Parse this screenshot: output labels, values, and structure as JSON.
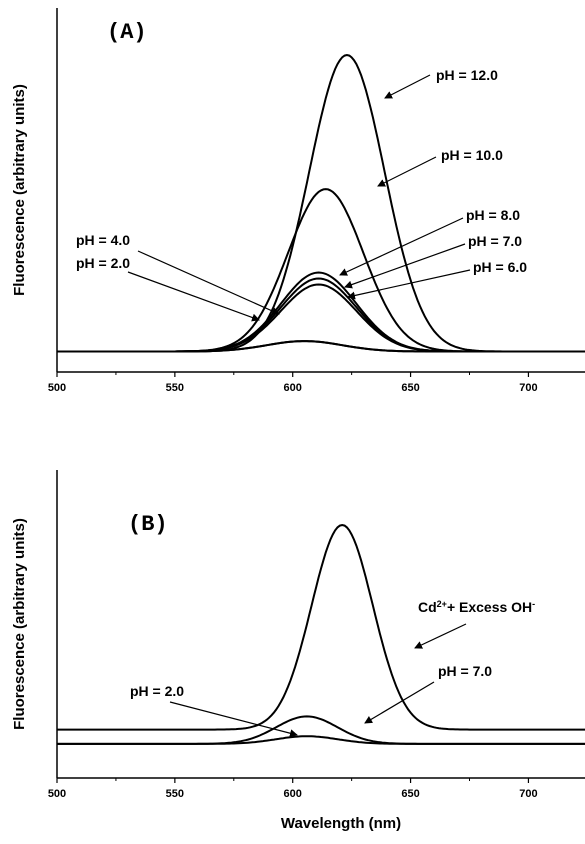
{
  "chart_data": [
    {
      "type": "line",
      "panel": "A",
      "panel_label": "(A)",
      "xlabel": "",
      "ylabel": "Fluorescence (arbitrary units)",
      "xlim": [
        500,
        724
      ],
      "ylim": [
        0,
        100
      ],
      "xticks": [
        500,
        550,
        600,
        650,
        700
      ],
      "grid": false,
      "series": [
        {
          "name": "pH = 2.0",
          "peak_x": 605,
          "peak_y": 4,
          "baseline": 0.5
        },
        {
          "name": "pH = 4.0",
          "peak_x": 605,
          "peak_y": 4,
          "baseline": 0.5
        },
        {
          "name": "pH = 6.0",
          "peak_x": 611,
          "peak_y": 23,
          "baseline": 0.5
        },
        {
          "name": "pH = 7.0",
          "peak_x": 611,
          "peak_y": 25,
          "baseline": 0.5
        },
        {
          "name": "pH = 8.0",
          "peak_x": 611,
          "peak_y": 27,
          "baseline": 0.5
        },
        {
          "name": "pH = 10.0",
          "peak_x": 614,
          "peak_y": 55,
          "baseline": 0.5
        },
        {
          "name": "pH = 12.0",
          "peak_x": 623,
          "peak_y": 100,
          "baseline": 0.5
        }
      ],
      "annotations": [
        "pH = 12.0",
        "pH = 10.0",
        "pH = 8.0",
        "pH = 7.0",
        "pH = 6.0",
        "pH = 4.0",
        "pH = 2.0"
      ]
    },
    {
      "type": "line",
      "panel": "B",
      "panel_label": "(B)",
      "xlabel": "Wavelength (nm)",
      "ylabel": "Fluorescence (arbitrary units)",
      "xlim": [
        500,
        724
      ],
      "ylim": [
        0,
        100
      ],
      "xticks": [
        500,
        550,
        600,
        650,
        700
      ],
      "grid": false,
      "series": [
        {
          "name": "Cd2+ + Excess OH-",
          "peak_x": 621,
          "peak_y": 100,
          "baseline": 7
        },
        {
          "name": "pH = 7.0",
          "peak_x": 606,
          "peak_y": 13,
          "baseline": 0.5
        },
        {
          "name": "pH = 2.0",
          "peak_x": 606,
          "peak_y": 4,
          "baseline": 0.5
        }
      ],
      "annotations": {
        "cd_main": "Cd",
        "cd_sup1": "2+",
        "cd_mid": "+ Excess OH",
        "cd_sup2": "-",
        "ph7": "pH = 7.0",
        "ph2": "pH = 2.0"
      }
    }
  ],
  "colors": {
    "line": "#000000",
    "background": "#ffffff"
  }
}
